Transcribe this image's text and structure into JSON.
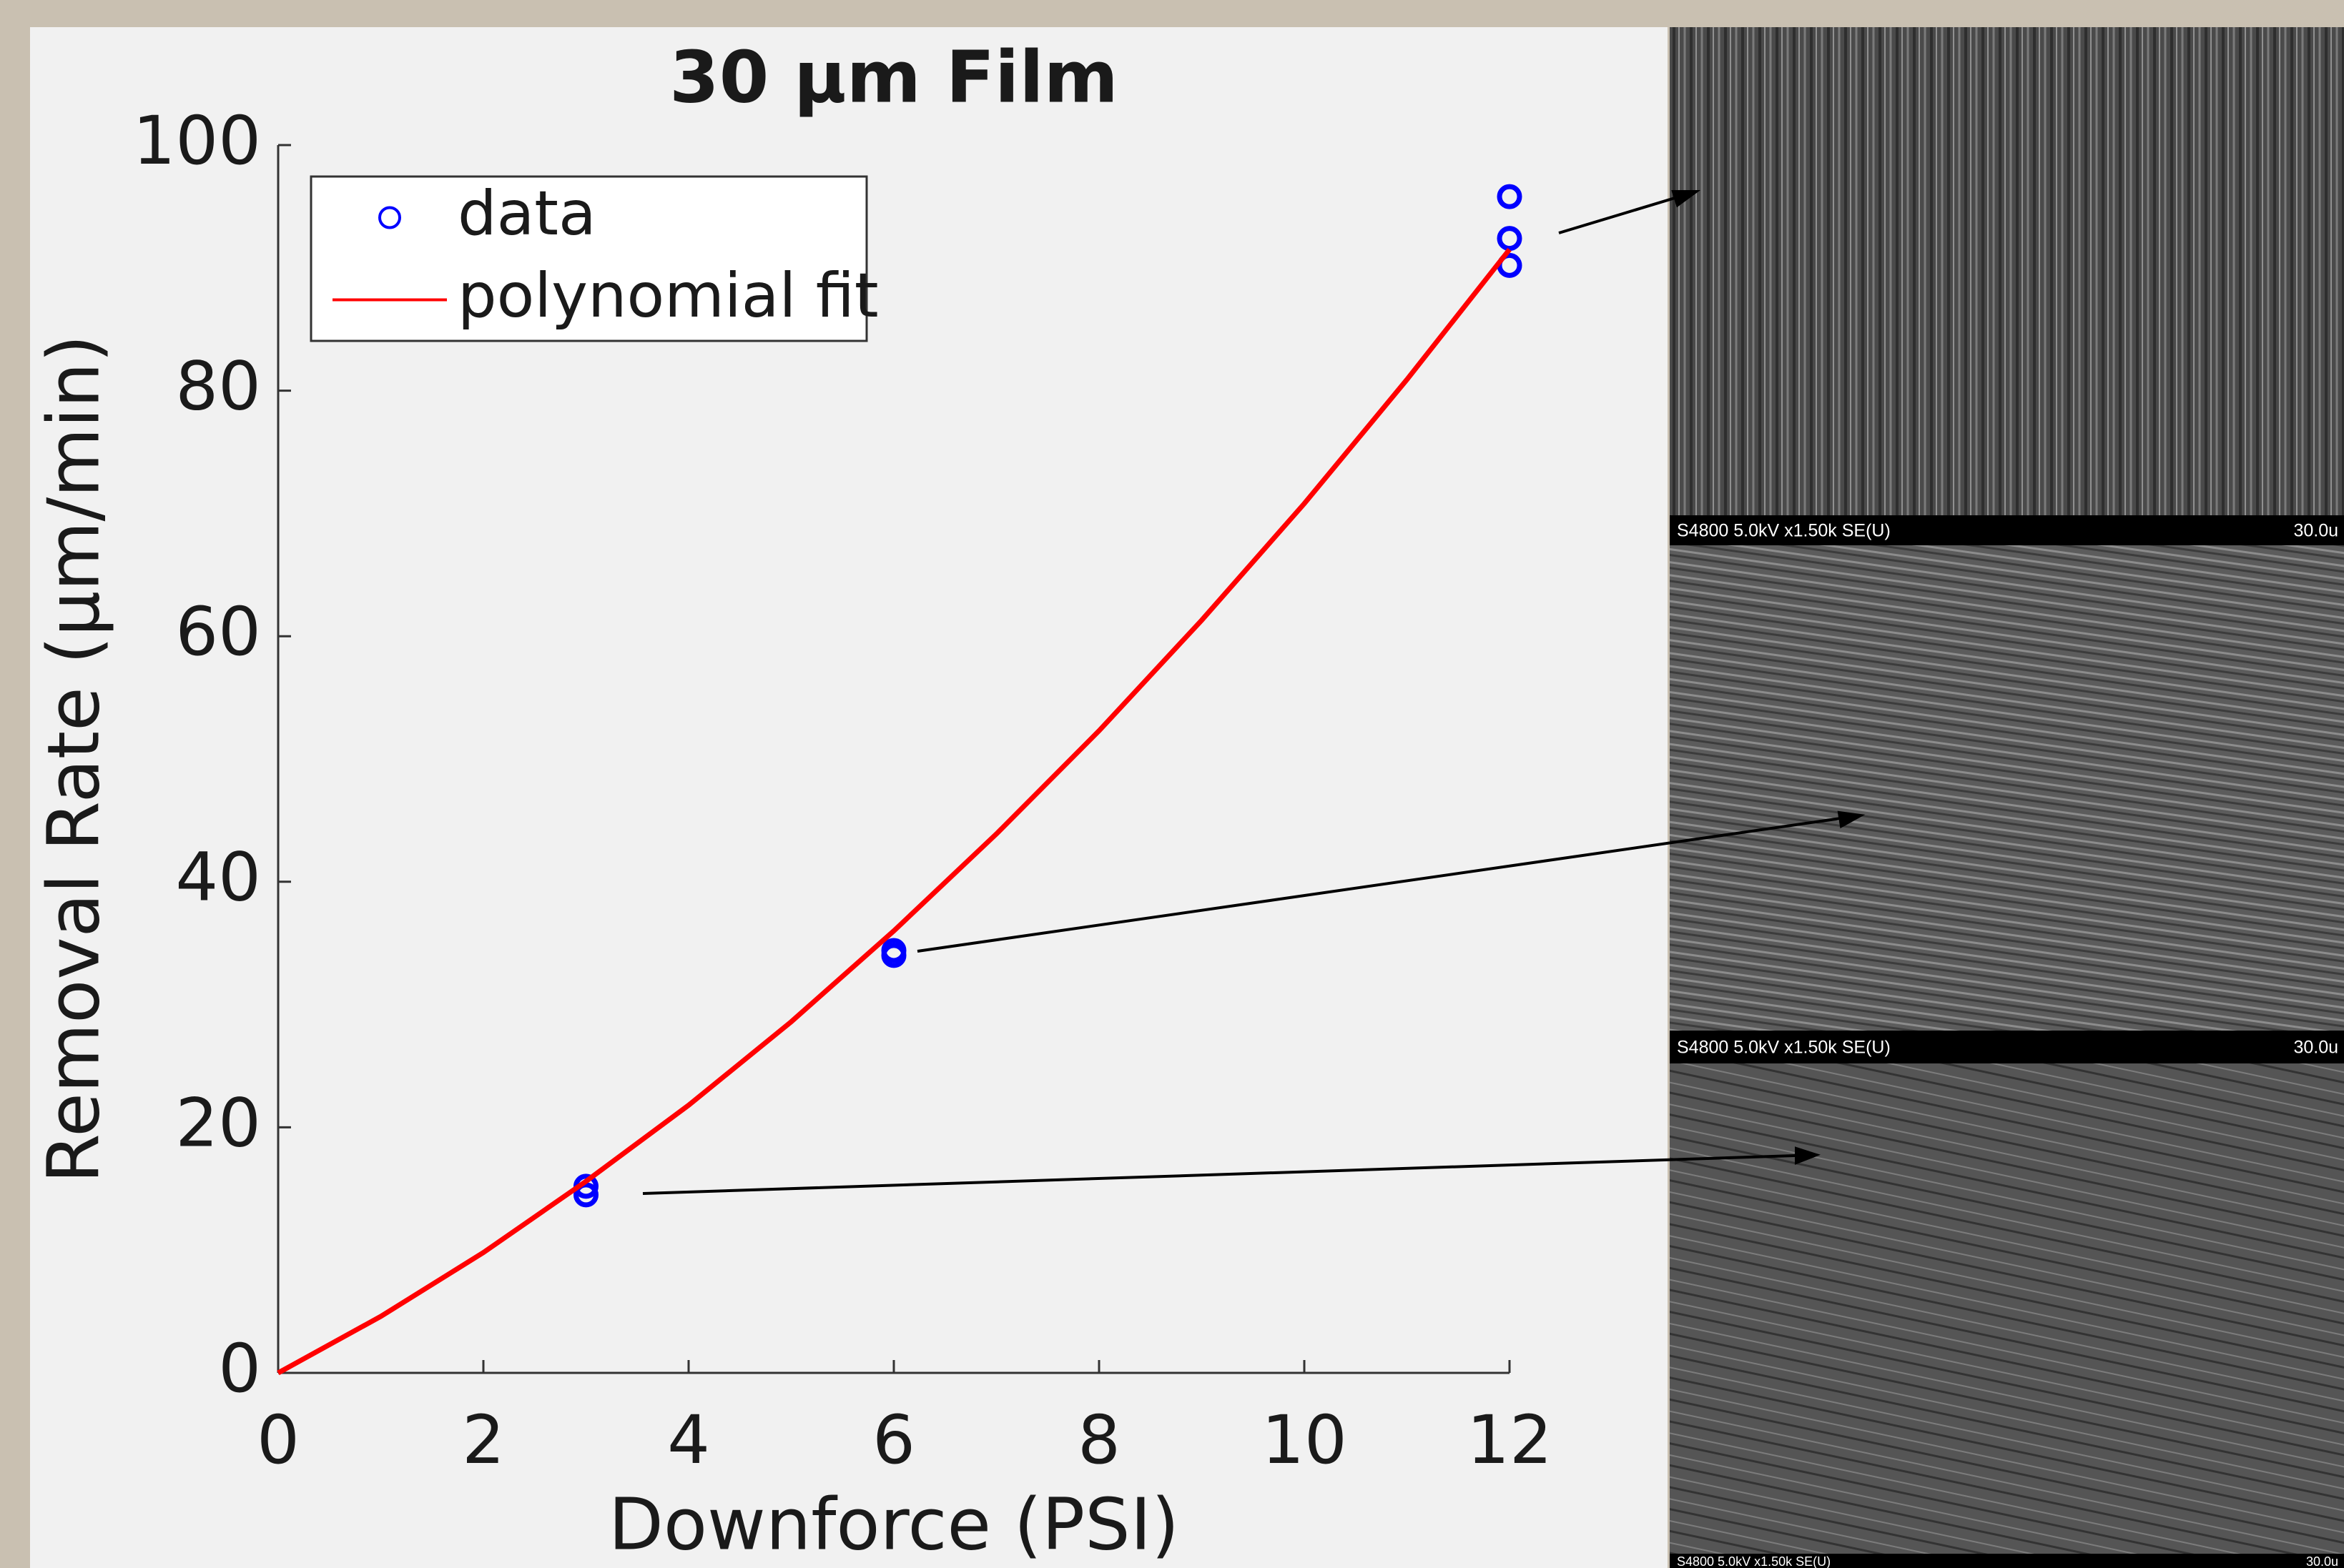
{
  "chart_data": {
    "type": "scatter",
    "title": "30 μm Film",
    "x_label": "Downforce (PSI)",
    "y_label": "Removal Rate (μm/min)",
    "xlim": [
      0,
      12
    ],
    "xticks": [
      0,
      2,
      4,
      6,
      8,
      10,
      12
    ],
    "ylim": [
      0,
      100
    ],
    "yticks": [
      0,
      20,
      40,
      60,
      80,
      100
    ],
    "grid": false,
    "legend": "upper left",
    "series": [
      {
        "name": "data",
        "color": "#0000ff",
        "mode": "markers",
        "x": [
          3,
          3,
          6,
          6,
          12,
          12,
          12
        ],
        "values": [
          14.5,
          15.2,
          34,
          34.4,
          95.8,
          92.4,
          90.2
        ]
      },
      {
        "name": "polynomial fit",
        "color": "#ff0000",
        "mode": "line",
        "x": [
          0,
          1,
          2,
          3,
          4,
          5,
          6,
          7,
          8,
          9,
          10,
          11,
          12
        ],
        "values": [
          0,
          4.6,
          9.8,
          15.6,
          21.8,
          28.6,
          36,
          43.9,
          52.3,
          61.3,
          70.8,
          80.9,
          91.5
        ]
      }
    ]
  },
  "images": [
    {
      "caption": "S4800 5.0kV x1.50k SE(U)",
      "scale": "30.0u"
    },
    {
      "caption": "S4800 5.0kV x1.50k SE(U)",
      "scale": "30.0u"
    },
    {
      "caption": "S4800 5.0kV x1.50k SE(U)",
      "scale": "30.0u"
    }
  ]
}
